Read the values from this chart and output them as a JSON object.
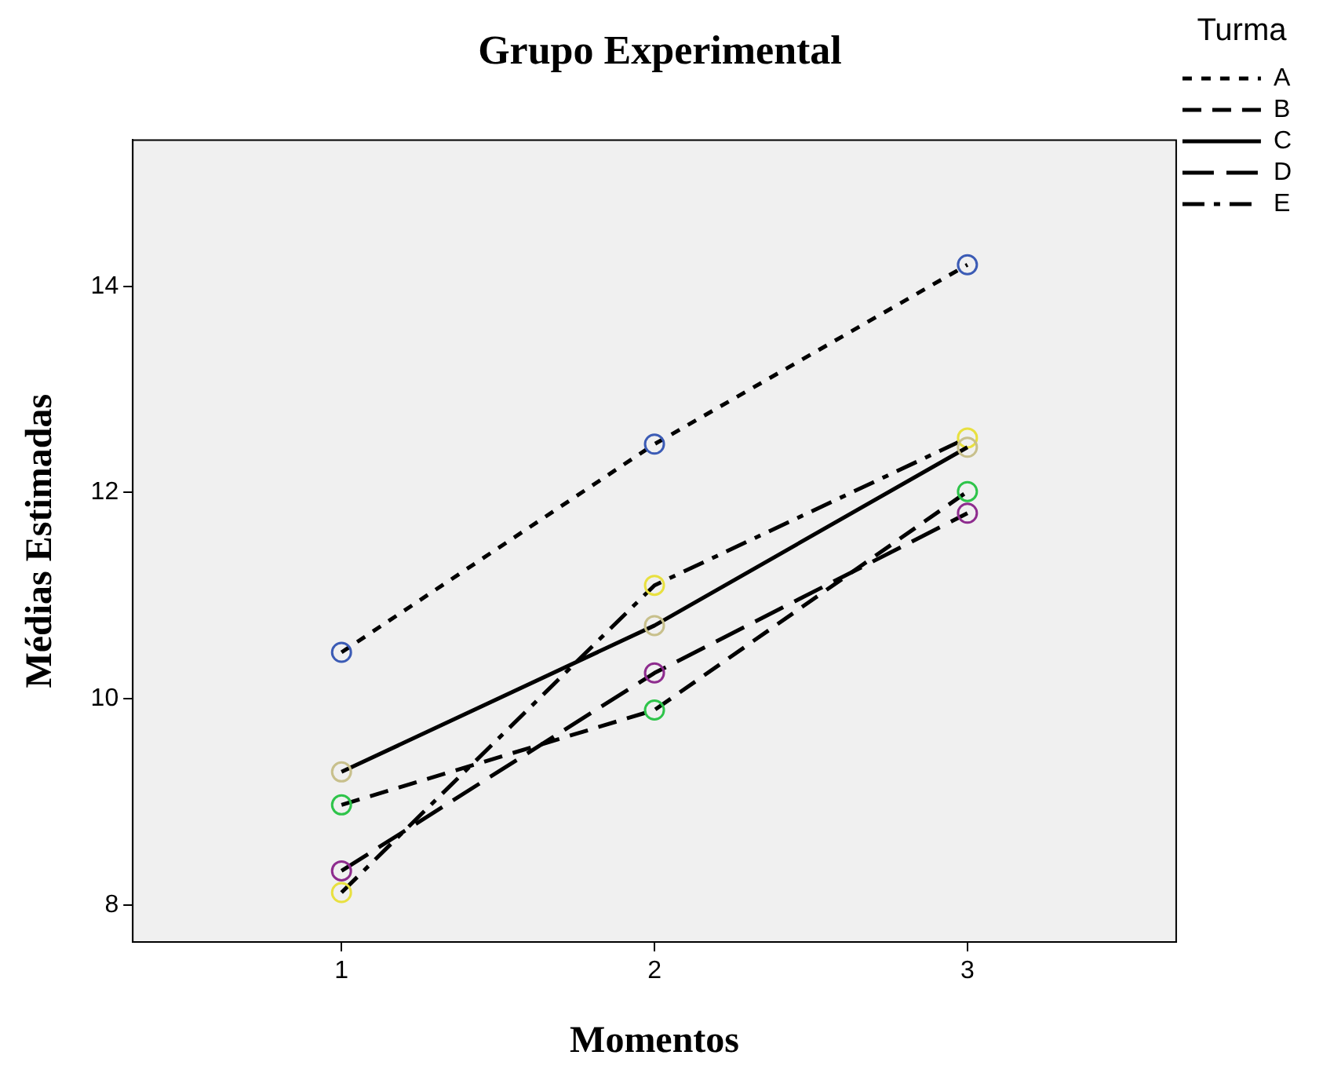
{
  "chart_data": {
    "type": "line",
    "title": "Grupo Experimental",
    "xlabel": "Momentos",
    "ylabel": "Médias Estimadas",
    "legend_title": "Turma",
    "legend": "top right",
    "grid": false,
    "marker": "circle",
    "x": [
      1,
      2,
      3
    ],
    "xlim": [
      0.333,
      3.667
    ],
    "xticks": [
      1,
      2,
      3
    ],
    "ylim": [
      7.64,
      15.42
    ],
    "yticks": [
      8,
      10,
      12,
      14
    ],
    "series": [
      {
        "name": "A",
        "color": "#000000",
        "line_style": "dotted",
        "colors": [
          "#3b5bb5",
          "#3b5bb5",
          "#3b5bb5"
        ],
        "values": [
          10.45,
          12.47,
          14.21
        ]
      },
      {
        "name": "B",
        "color": "#000000",
        "line_style": "dashed",
        "colors": [
          "#2ec44a",
          "#2ec44a",
          "#2ec44a"
        ],
        "values": [
          8.97,
          9.89,
          12.01
        ]
      },
      {
        "name": "C",
        "color": "#000000",
        "line_style": "solid",
        "colors": [
          "#c8c08c",
          "#c8c08c",
          "#c8c08c"
        ],
        "values": [
          9.29,
          10.71,
          12.44
        ]
      },
      {
        "name": "D",
        "color": "#000000",
        "line_style": "longdash",
        "colors": [
          "#8e2c8e",
          "#8e2c8e",
          "#8e2c8e"
        ],
        "values": [
          8.33,
          10.25,
          11.8
        ]
      },
      {
        "name": "E",
        "color": "#000000",
        "line_style": "dashdot",
        "colors": [
          "#e8e040",
          "#e8e040",
          "#e8e040"
        ],
        "values": [
          8.12,
          11.1,
          12.53
        ]
      }
    ]
  }
}
